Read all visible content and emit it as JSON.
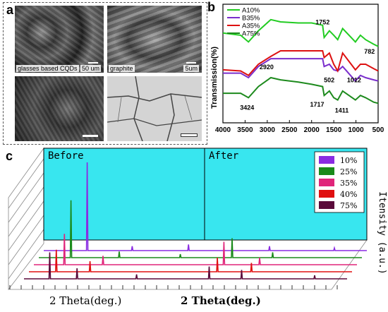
{
  "panels": {
    "a": {
      "letter": "a",
      "images": [
        {
          "caption": "glasses based CQDs",
          "scale": "50 um"
        },
        {
          "caption": "graphite",
          "scale": "5um"
        },
        {
          "caption": "",
          "scale": ""
        },
        {
          "caption": "",
          "scale": ""
        }
      ]
    },
    "b": {
      "letter": "b",
      "ylabel": "Transmission(%)",
      "legend": [
        "A10%",
        "B35%",
        "A35%",
        "A75%"
      ],
      "colors": [
        "#22cc22",
        "#7a2ecc",
        "#dd1111",
        "#1d8a1d"
      ],
      "annotations": [
        "1752",
        "782",
        "2920",
        "502",
        "1012",
        "1717",
        "1411",
        "3424"
      ]
    },
    "c": {
      "letter": "c",
      "before": "Before",
      "after": "After",
      "xlabel_left": "2 Theta(deg.)",
      "xlabel_right": "2 Theta(deg.)",
      "ylabel": "Itensity (a.u.)",
      "legend": [
        "10%",
        "25%",
        "35%",
        "40%",
        "75%"
      ],
      "colors": [
        "#8a2be2",
        "#1a8a1a",
        "#e0257a",
        "#e01010",
        "#5a0a3a"
      ],
      "bg_color": "#38e6ef"
    }
  },
  "chart_data": [
    {
      "type": "line",
      "title": "",
      "xlabel": "",
      "ylabel": "Transmission(%)",
      "x_ticks": [
        4000,
        3500,
        3000,
        2500,
        2000,
        1500,
        1000,
        500
      ],
      "xlim": [
        4000,
        500
      ],
      "series": [
        {
          "name": "A10%",
          "x": [
            4000,
            3600,
            3424,
            3200,
            2920,
            2700,
            2300,
            2000,
            1752,
            1717,
            1600,
            1500,
            1411,
            1300,
            1012,
            900,
            782,
            600,
            500
          ],
          "y": [
            0.78,
            0.76,
            0.7,
            0.8,
            0.9,
            0.88,
            0.87,
            0.87,
            0.85,
            0.74,
            0.8,
            0.76,
            0.72,
            0.82,
            0.7,
            0.76,
            0.72,
            0.68,
            0.66
          ]
        },
        {
          "name": "B35%",
          "x": [
            4000,
            3600,
            3424,
            3200,
            2920,
            2700,
            2300,
            2000,
            1752,
            1717,
            1600,
            1500,
            1411,
            1300,
            1012,
            900,
            782,
            600,
            500
          ],
          "y": [
            0.42,
            0.42,
            0.38,
            0.48,
            0.55,
            0.55,
            0.55,
            0.55,
            0.55,
            0.48,
            0.5,
            0.45,
            0.44,
            0.48,
            0.35,
            0.4,
            0.38,
            0.36,
            0.35
          ]
        },
        {
          "name": "A35%",
          "x": [
            4000,
            3600,
            3424,
            3200,
            2920,
            2700,
            2300,
            2000,
            1752,
            1717,
            1600,
            1500,
            1411,
            1300,
            1012,
            900,
            782,
            600,
            500
          ],
          "y": [
            0.45,
            0.44,
            0.4,
            0.5,
            0.57,
            0.62,
            0.62,
            0.62,
            0.62,
            0.56,
            0.6,
            0.5,
            0.44,
            0.6,
            0.45,
            0.5,
            0.5,
            0.46,
            0.44
          ]
        },
        {
          "name": "A75%",
          "x": [
            4000,
            3600,
            3424,
            3200,
            2920,
            2700,
            2300,
            2000,
            1752,
            1717,
            1600,
            1500,
            1411,
            1300,
            1012,
            900,
            782,
            600,
            500
          ],
          "y": [
            0.24,
            0.24,
            0.2,
            0.3,
            0.38,
            0.36,
            0.34,
            0.32,
            0.3,
            0.22,
            0.26,
            0.2,
            0.18,
            0.26,
            0.18,
            0.22,
            0.2,
            0.16,
            0.15
          ]
        }
      ]
    },
    {
      "type": "line",
      "title": "",
      "xlabel": "2 Theta(deg.)",
      "ylabel": "Itensity (a.u.)",
      "series": [
        {
          "name": "10%",
          "panel": "Before",
          "peaks": [
            {
              "x": 0.27,
              "h": 1.0
            },
            {
              "x": 0.55,
              "h": 0.05
            },
            {
              "x": 0.9,
              "h": 0.07
            }
          ]
        },
        {
          "name": "25%",
          "panel": "Before",
          "peaks": [
            {
              "x": 0.2,
              "h": 0.65
            },
            {
              "x": 0.5,
              "h": 0.07
            },
            {
              "x": 0.88,
              "h": 0.04
            }
          ]
        },
        {
          "name": "35%",
          "panel": "Before",
          "peaks": [
            {
              "x": 0.19,
              "h": 0.35
            },
            {
              "x": 0.43,
              "h": 0.1
            }
          ]
        },
        {
          "name": "40%",
          "panel": "Before",
          "peaks": [
            {
              "x": 0.17,
              "h": 0.25
            },
            {
              "x": 0.38,
              "h": 0.12
            }
          ]
        },
        {
          "name": "75%",
          "panel": "Before",
          "peaks": [
            {
              "x": 0.16,
              "h": 0.3
            },
            {
              "x": 0.33,
              "h": 0.12
            },
            {
              "x": 0.7,
              "h": 0.05
            }
          ]
        },
        {
          "name": "10%",
          "panel": "After",
          "peaks": [
            {
              "x": 0.4,
              "h": 0.05
            },
            {
              "x": 0.8,
              "h": 0.03
            }
          ]
        },
        {
          "name": "25%",
          "panel": "After",
          "peaks": [
            {
              "x": 0.2,
              "h": 0.22
            },
            {
              "x": 0.45,
              "h": 0.06
            }
          ]
        },
        {
          "name": "35%",
          "panel": "After",
          "peaks": [
            {
              "x": 0.18,
              "h": 0.26
            },
            {
              "x": 0.4,
              "h": 0.08
            }
          ]
        },
        {
          "name": "40%",
          "panel": "After",
          "peaks": [
            {
              "x": 0.17,
              "h": 0.16
            },
            {
              "x": 0.38,
              "h": 0.1
            }
          ]
        },
        {
          "name": "75%",
          "panel": "After",
          "peaks": [
            {
              "x": 0.15,
              "h": 0.14
            },
            {
              "x": 0.35,
              "h": 0.1
            },
            {
              "x": 0.8,
              "h": 0.04
            }
          ]
        }
      ]
    }
  ]
}
